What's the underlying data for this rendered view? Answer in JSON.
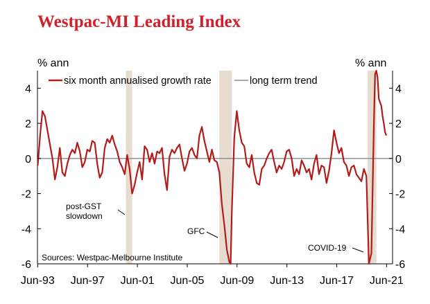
{
  "title": "Westpac-MI Leading Index",
  "source": "Sources: Westpac-Melbourne Institute",
  "colors": {
    "title": "#d1202a",
    "series": "#b31b1b",
    "trend": "#888888",
    "shade": "#e6dcd0"
  },
  "chart_data": {
    "type": "line",
    "title": "Westpac-MI Leading Index",
    "ylabel_left": "% ann",
    "ylabel_right": "% ann",
    "ylim": [
      -6,
      5
    ],
    "yticks": [
      -6,
      -4,
      -2,
      0,
      2,
      4
    ],
    "ytick_labels": [
      "-6",
      "-4",
      "-2",
      "0",
      "2",
      "4"
    ],
    "xlim": [
      1993.4,
      2021.9
    ],
    "xticks": [
      1993.42,
      1997.42,
      2001.42,
      2005.42,
      2009.42,
      2013.42,
      2017.42,
      2021.42
    ],
    "xtick_labels": [
      "Jun-93",
      "Jun-97",
      "Jun-01",
      "Jun-05",
      "Jun-09",
      "Jun-13",
      "Jun-17",
      "Jun-21"
    ],
    "legend": [
      "six month annualised growth rate",
      "long term trend"
    ],
    "shaded_periods": [
      {
        "label": "post-GST slowdown",
        "start": 2000.5,
        "end": 2001.0
      },
      {
        "label": "GFC",
        "start": 2008.0,
        "end": 2009.0
      },
      {
        "label": "COVID-19",
        "start": 2019.9,
        "end": 2020.6
      }
    ],
    "annotations": [
      "post-GST",
      "slowdown",
      "GFC",
      "COVID-19"
    ],
    "series": [
      {
        "name": "six month annualised growth rate",
        "x": [
          1993.42,
          1993.6,
          1993.8,
          1994.0,
          1994.2,
          1994.4,
          1994.6,
          1994.8,
          1995.0,
          1995.2,
          1995.4,
          1995.6,
          1995.8,
          1996.0,
          1996.2,
          1996.4,
          1996.6,
          1996.8,
          1997.0,
          1997.2,
          1997.4,
          1997.6,
          1997.8,
          1998.0,
          1998.2,
          1998.4,
          1998.6,
          1998.8,
          1999.0,
          1999.2,
          1999.4,
          1999.6,
          1999.8,
          2000.0,
          2000.2,
          2000.4,
          2000.6,
          2000.8,
          2001.0,
          2001.2,
          2001.4,
          2001.6,
          2001.8,
          2002.0,
          2002.2,
          2002.4,
          2002.6,
          2002.8,
          2003.0,
          2003.2,
          2003.4,
          2003.6,
          2003.8,
          2004.0,
          2004.2,
          2004.4,
          2004.6,
          2004.8,
          2005.0,
          2005.2,
          2005.4,
          2005.6,
          2005.8,
          2006.0,
          2006.2,
          2006.4,
          2006.6,
          2006.8,
          2007.0,
          2007.2,
          2007.4,
          2007.6,
          2007.8,
          2008.0,
          2008.2,
          2008.4,
          2008.6,
          2008.8,
          2008.9,
          2009.0,
          2009.2,
          2009.4,
          2009.6,
          2009.8,
          2010.0,
          2010.2,
          2010.4,
          2010.6,
          2010.8,
          2011.0,
          2011.2,
          2011.4,
          2011.6,
          2011.8,
          2012.0,
          2012.2,
          2012.4,
          2012.6,
          2012.8,
          2013.0,
          2013.2,
          2013.4,
          2013.6,
          2013.8,
          2014.0,
          2014.2,
          2014.4,
          2014.6,
          2014.8,
          2015.0,
          2015.2,
          2015.4,
          2015.6,
          2015.8,
          2016.0,
          2016.2,
          2016.4,
          2016.6,
          2016.8,
          2017.0,
          2017.2,
          2017.4,
          2017.6,
          2017.8,
          2018.0,
          2018.2,
          2018.4,
          2018.6,
          2018.8,
          2019.0,
          2019.2,
          2019.4,
          2019.6,
          2019.8,
          2020.0,
          2020.2,
          2020.4,
          2020.5,
          2020.6,
          2020.7,
          2020.8,
          2020.9,
          2021.0,
          2021.1,
          2021.2,
          2021.3,
          2021.4
        ],
        "values": [
          -0.4,
          1.2,
          2.7,
          2.4,
          1.6,
          0.8,
          0.0,
          -1.2,
          -0.5,
          0.6,
          -0.8,
          -1.0,
          -0.3,
          0.2,
          0.5,
          0.3,
          0.9,
          0.4,
          -0.5,
          -0.2,
          0.5,
          0.4,
          1.0,
          0.9,
          -0.3,
          -1.1,
          -0.8,
          0.6,
          1.1,
          0.9,
          1.3,
          0.8,
          0.4,
          -0.2,
          -0.5,
          -0.9,
          0.2,
          -0.6,
          -2.0,
          -1.5,
          -0.8,
          -0.2,
          -1.2,
          0.7,
          0.5,
          -0.2,
          0.3,
          -0.3,
          0.4,
          0.3,
          0.6,
          -0.9,
          -1.8,
          0.1,
          0.5,
          0.3,
          0.6,
          0.8,
          0.0,
          -0.7,
          -0.3,
          0.4,
          0.6,
          0.2,
          0.0,
          1.3,
          1.8,
          1.0,
          0.4,
          -0.2,
          0.5,
          -0.1,
          -0.2,
          -0.8,
          -2.6,
          -3.8,
          -5.2,
          -5.9,
          -6.0,
          -3.0,
          1.2,
          2.7,
          1.6,
          0.9,
          0.7,
          -0.3,
          -0.5,
          0.2,
          -0.8,
          -1.4,
          -1.5,
          -0.6,
          -0.4,
          0.0,
          0.3,
          0.5,
          -0.2,
          -0.8,
          -0.4,
          -0.6,
          -0.2,
          0.4,
          0.5,
          0.0,
          -1.0,
          -0.6,
          -0.9,
          -0.1,
          -0.4,
          -0.8,
          -0.6,
          -1.2,
          -0.3,
          0.2,
          -0.9,
          -0.4,
          -0.5,
          -1.4,
          -0.7,
          0.3,
          1.6,
          0.9,
          0.3,
          0.6,
          -0.2,
          -0.4,
          -1.0,
          -0.5,
          -0.4,
          -0.9,
          -1.1,
          -1.3,
          -0.6,
          -1.0,
          -6.0,
          -5.4,
          2.0,
          4.8,
          5.0,
          4.6,
          3.4,
          3.2,
          3.0,
          2.4,
          2.0,
          1.5,
          1.3
        ]
      },
      {
        "name": "long term trend",
        "x": [
          1993.4,
          2021.9
        ],
        "values": [
          0,
          0
        ]
      }
    ]
  }
}
